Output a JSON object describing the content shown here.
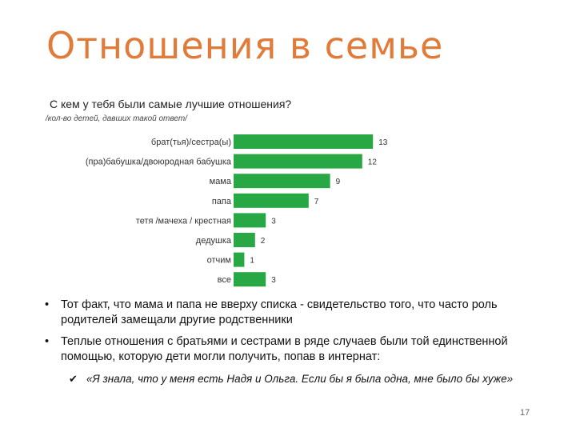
{
  "slide": {
    "title": "Отношения в семье",
    "question": "С кем у тебя были самые лучшие отношения?",
    "subnote": "/кол-во детей, давших такой ответ/",
    "page_number": "17"
  },
  "colors": {
    "bar": "#27a844",
    "title": "#e07b39"
  },
  "chart_data": {
    "type": "bar",
    "orientation": "horizontal",
    "categories": [
      "брат(тья)/сестра(ы)",
      "(пра)бабушка/двоюродная бабушка",
      "мама",
      "папа",
      "тетя /мачеха / крестная",
      "дедушка",
      "отчим",
      "все"
    ],
    "values": [
      13,
      12,
      9,
      7,
      3,
      2,
      1,
      3
    ],
    "data_labels": [
      "13",
      "12",
      "9",
      "7",
      "3",
      "2",
      "1",
      "3"
    ],
    "title": "С кем у тебя были самые лучшие отношения?",
    "xlim": [
      0,
      13
    ],
    "grid": false,
    "legend": "none"
  },
  "bullets": [
    {
      "text": "Тот факт, что мама и папа не вверху списка - свидетельство того, что часто роль родителей замещали другие родственники"
    },
    {
      "text": "Теплые отношения с братьями и сестрами в ряде случаев были той единственной помощью, которую дети могли получить, попав в интернат:"
    }
  ],
  "quote": "«Я знала, что у меня есть Надя и Ольга. Если бы я была одна, мне было бы хуже»"
}
